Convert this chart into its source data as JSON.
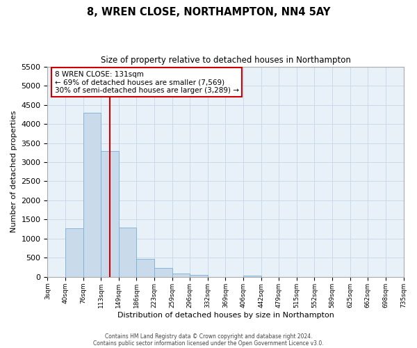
{
  "title": "8, WREN CLOSE, NORTHAMPTON, NN4 5AY",
  "subtitle": "Size of property relative to detached houses in Northampton",
  "xlabel": "Distribution of detached houses by size in Northampton",
  "ylabel": "Number of detached properties",
  "bin_labels": [
    "3sqm",
    "40sqm",
    "76sqm",
    "113sqm",
    "149sqm",
    "186sqm",
    "223sqm",
    "259sqm",
    "296sqm",
    "332sqm",
    "369sqm",
    "406sqm",
    "442sqm",
    "479sqm",
    "515sqm",
    "552sqm",
    "589sqm",
    "625sqm",
    "662sqm",
    "698sqm",
    "735sqm"
  ],
  "bar_values": [
    0,
    1270,
    4300,
    3300,
    1290,
    480,
    240,
    90,
    50,
    0,
    0,
    30,
    0,
    0,
    0,
    0,
    0,
    0,
    0,
    0
  ],
  "bar_color": "#c9daea",
  "bar_edge_color": "#7aaed6",
  "bar_width": 1.0,
  "ylim": [
    0,
    5500
  ],
  "yticks": [
    0,
    500,
    1000,
    1500,
    2000,
    2500,
    3000,
    3500,
    4000,
    4500,
    5000,
    5500
  ],
  "annotation_box_title": "8 WREN CLOSE: 131sqm",
  "annotation_line1": "← 69% of detached houses are smaller (7,569)",
  "annotation_line2": "30% of semi-detached houses are larger (3,289) →",
  "annotation_box_color": "#ffffff",
  "annotation_border_color": "#cc0000",
  "grid_color": "#c9daea",
  "background_color": "#e8f0f8",
  "footer_line1": "Contains HM Land Registry data © Crown copyright and database right 2024.",
  "footer_line2": "Contains public sector information licensed under the Open Government Licence v3.0."
}
